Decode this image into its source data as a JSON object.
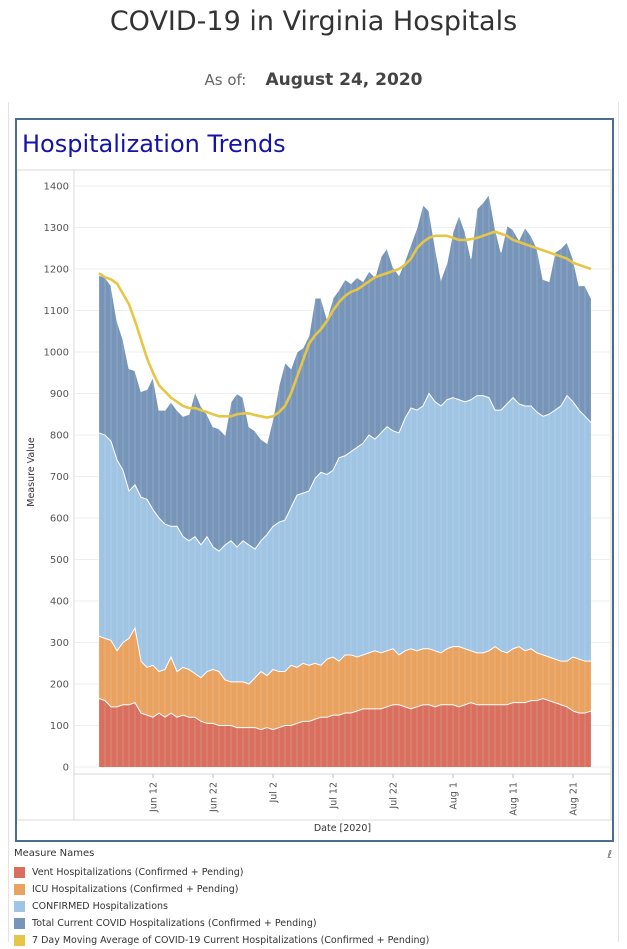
{
  "header": {
    "title": "COVID-19 in Virginia Hospitals",
    "asof_label": "As of:",
    "asof_value": "August 24, 2020"
  },
  "panel": {
    "title": "Hospitalization Trends"
  },
  "legend": {
    "title": "Measure Names",
    "items": [
      {
        "label": "Vent Hospitalizations (Confirmed + Pending)",
        "color": "#d9705f"
      },
      {
        "label": "ICU Hospitalizations (Confirmed + Pending)",
        "color": "#e9a25f"
      },
      {
        "label": "CONFIRMED Hospitalizations",
        "color": "#a0c4e4"
      },
      {
        "label": "Total Current COVID Hospitalizations (Confirmed + Pending)",
        "color": "#7795b9"
      },
      {
        "label": "7 Day Moving Average of COVID-19 Current Hospitalizations (Confirmed + Pending)",
        "color": "#e6c647"
      }
    ]
  },
  "chart_data": {
    "type": "area",
    "xlabel": "Date [2020]",
    "ylabel": "Measure Value",
    "ylim": [
      0,
      1400
    ],
    "yticks": [
      0,
      100,
      200,
      300,
      400,
      500,
      600,
      700,
      800,
      900,
      1000,
      1100,
      1200,
      1300,
      1400
    ],
    "x_tick_labels": [
      {
        "label": "Jun 12",
        "day_index": 9
      },
      {
        "label": "Jun 22",
        "day_index": 19
      },
      {
        "label": "Jul 2",
        "day_index": 29
      },
      {
        "label": "Jul 12",
        "day_index": 39
      },
      {
        "label": "Jul 22",
        "day_index": 49
      },
      {
        "label": "Aug 1",
        "day_index": 59
      },
      {
        "label": "Aug 11",
        "day_index": 69
      },
      {
        "label": "Aug 21",
        "day_index": 79
      }
    ],
    "grid": true,
    "legend_position": "bottom",
    "dates": [
      "Jun 3",
      "Jun 4",
      "Jun 5",
      "Jun 6",
      "Jun 7",
      "Jun 8",
      "Jun 9",
      "Jun 10",
      "Jun 11",
      "Jun 12",
      "Jun 13",
      "Jun 14",
      "Jun 15",
      "Jun 16",
      "Jun 17",
      "Jun 18",
      "Jun 19",
      "Jun 20",
      "Jun 21",
      "Jun 22",
      "Jun 23",
      "Jun 24",
      "Jun 25",
      "Jun 26",
      "Jun 27",
      "Jun 28",
      "Jun 29",
      "Jun 30",
      "Jul 1",
      "Jul 2",
      "Jul 3",
      "Jul 4",
      "Jul 5",
      "Jul 6",
      "Jul 7",
      "Jul 8",
      "Jul 9",
      "Jul 10",
      "Jul 11",
      "Jul 12",
      "Jul 13",
      "Jul 14",
      "Jul 15",
      "Jul 16",
      "Jul 17",
      "Jul 18",
      "Jul 19",
      "Jul 20",
      "Jul 21",
      "Jul 22",
      "Jul 23",
      "Jul 24",
      "Jul 25",
      "Jul 26",
      "Jul 27",
      "Jul 28",
      "Jul 29",
      "Jul 30",
      "Jul 31",
      "Aug 1",
      "Aug 2",
      "Aug 3",
      "Aug 4",
      "Aug 5",
      "Aug 6",
      "Aug 7",
      "Aug 8",
      "Aug 9",
      "Aug 10",
      "Aug 11",
      "Aug 12",
      "Aug 13",
      "Aug 14",
      "Aug 15",
      "Aug 16",
      "Aug 17",
      "Aug 18",
      "Aug 19",
      "Aug 20",
      "Aug 21",
      "Aug 22",
      "Aug 23",
      "Aug 24"
    ],
    "series": [
      {
        "name": "Total Current COVID Hospitalizations (Confirmed + Pending)",
        "color": "#7795b9",
        "values": [
          1185,
          1180,
          1160,
          1075,
          1030,
          960,
          955,
          905,
          910,
          940,
          860,
          860,
          880,
          860,
          845,
          850,
          905,
          870,
          850,
          820,
          815,
          800,
          880,
          900,
          890,
          820,
          810,
          790,
          780,
          840,
          920,
          975,
          960,
          1000,
          1010,
          1040,
          1130,
          1130,
          1080,
          1130,
          1150,
          1175,
          1165,
          1180,
          1170,
          1195,
          1180,
          1230,
          1250,
          1205,
          1185,
          1220,
          1260,
          1300,
          1355,
          1340,
          1255,
          1175,
          1215,
          1290,
          1330,
          1290,
          1225,
          1345,
          1360,
          1380,
          1300,
          1240,
          1305,
          1295,
          1270,
          1300,
          1280,
          1250,
          1175,
          1170,
          1240,
          1250,
          1265,
          1225,
          1160,
          1160,
          1130
        ]
      },
      {
        "name": "CONFIRMED Hospitalizations",
        "color": "#a0c4e4",
        "values": [
          805,
          800,
          785,
          740,
          715,
          665,
          680,
          650,
          645,
          620,
          600,
          585,
          580,
          580,
          555,
          545,
          555,
          535,
          555,
          530,
          520,
          535,
          545,
          530,
          545,
          535,
          525,
          545,
          560,
          580,
          590,
          595,
          625,
          655,
          660,
          665,
          695,
          710,
          705,
          715,
          745,
          750,
          760,
          770,
          780,
          800,
          790,
          805,
          820,
          810,
          805,
          840,
          865,
          860,
          870,
          900,
          880,
          870,
          885,
          890,
          885,
          880,
          885,
          895,
          895,
          890,
          860,
          860,
          875,
          890,
          875,
          870,
          870,
          855,
          845,
          850,
          860,
          870,
          895,
          880,
          860,
          845,
          830
        ]
      },
      {
        "name": "ICU Hospitalizations (Confirmed + Pending)",
        "color": "#e9a25f",
        "values": [
          315,
          310,
          305,
          280,
          300,
          310,
          335,
          255,
          240,
          245,
          230,
          235,
          265,
          230,
          240,
          235,
          225,
          215,
          230,
          235,
          230,
          210,
          205,
          205,
          205,
          200,
          215,
          230,
          220,
          235,
          230,
          230,
          245,
          240,
          250,
          245,
          250,
          245,
          260,
          265,
          255,
          270,
          270,
          265,
          270,
          275,
          280,
          275,
          280,
          285,
          270,
          280,
          285,
          280,
          285,
          285,
          280,
          275,
          285,
          290,
          290,
          285,
          280,
          275,
          275,
          280,
          290,
          280,
          275,
          285,
          290,
          280,
          285,
          275,
          270,
          265,
          260,
          255,
          255,
          265,
          260,
          255,
          255
        ]
      },
      {
        "name": "Vent Hospitalizations (Confirmed + Pending)",
        "color": "#d9705f",
        "values": [
          165,
          160,
          145,
          145,
          150,
          150,
          155,
          130,
          125,
          120,
          130,
          120,
          130,
          120,
          125,
          120,
          120,
          110,
          105,
          105,
          100,
          100,
          100,
          95,
          95,
          95,
          95,
          90,
          95,
          90,
          95,
          100,
          100,
          105,
          110,
          110,
          115,
          120,
          120,
          125,
          125,
          130,
          130,
          135,
          140,
          140,
          140,
          140,
          145,
          150,
          150,
          145,
          140,
          145,
          150,
          150,
          145,
          150,
          150,
          150,
          145,
          150,
          155,
          150,
          150,
          150,
          150,
          150,
          150,
          155,
          155,
          155,
          160,
          160,
          165,
          160,
          155,
          150,
          145,
          135,
          130,
          130,
          135
        ]
      },
      {
        "name": "7 Day Moving Average of COVID-19 Current Hospitalizations (Confirmed + Pending)",
        "color": "#e6c647",
        "values": [
          1190,
          1180,
          1175,
          1165,
          1140,
          1115,
          1075,
          1030,
          985,
          950,
          920,
          905,
          890,
          880,
          870,
          865,
          865,
          860,
          855,
          850,
          845,
          845,
          845,
          850,
          852,
          852,
          848,
          845,
          842,
          845,
          855,
          870,
          900,
          940,
          980,
          1020,
          1040,
          1055,
          1075,
          1100,
          1120,
          1135,
          1145,
          1150,
          1160,
          1170,
          1180,
          1185,
          1190,
          1195,
          1200,
          1210,
          1225,
          1250,
          1265,
          1275,
          1280,
          1280,
          1280,
          1275,
          1270,
          1270,
          1272,
          1275,
          1280,
          1285,
          1290,
          1285,
          1280,
          1270,
          1265,
          1260,
          1255,
          1250,
          1245,
          1240,
          1235,
          1230,
          1225,
          1215,
          1210,
          1205,
          1200
        ]
      }
    ]
  }
}
